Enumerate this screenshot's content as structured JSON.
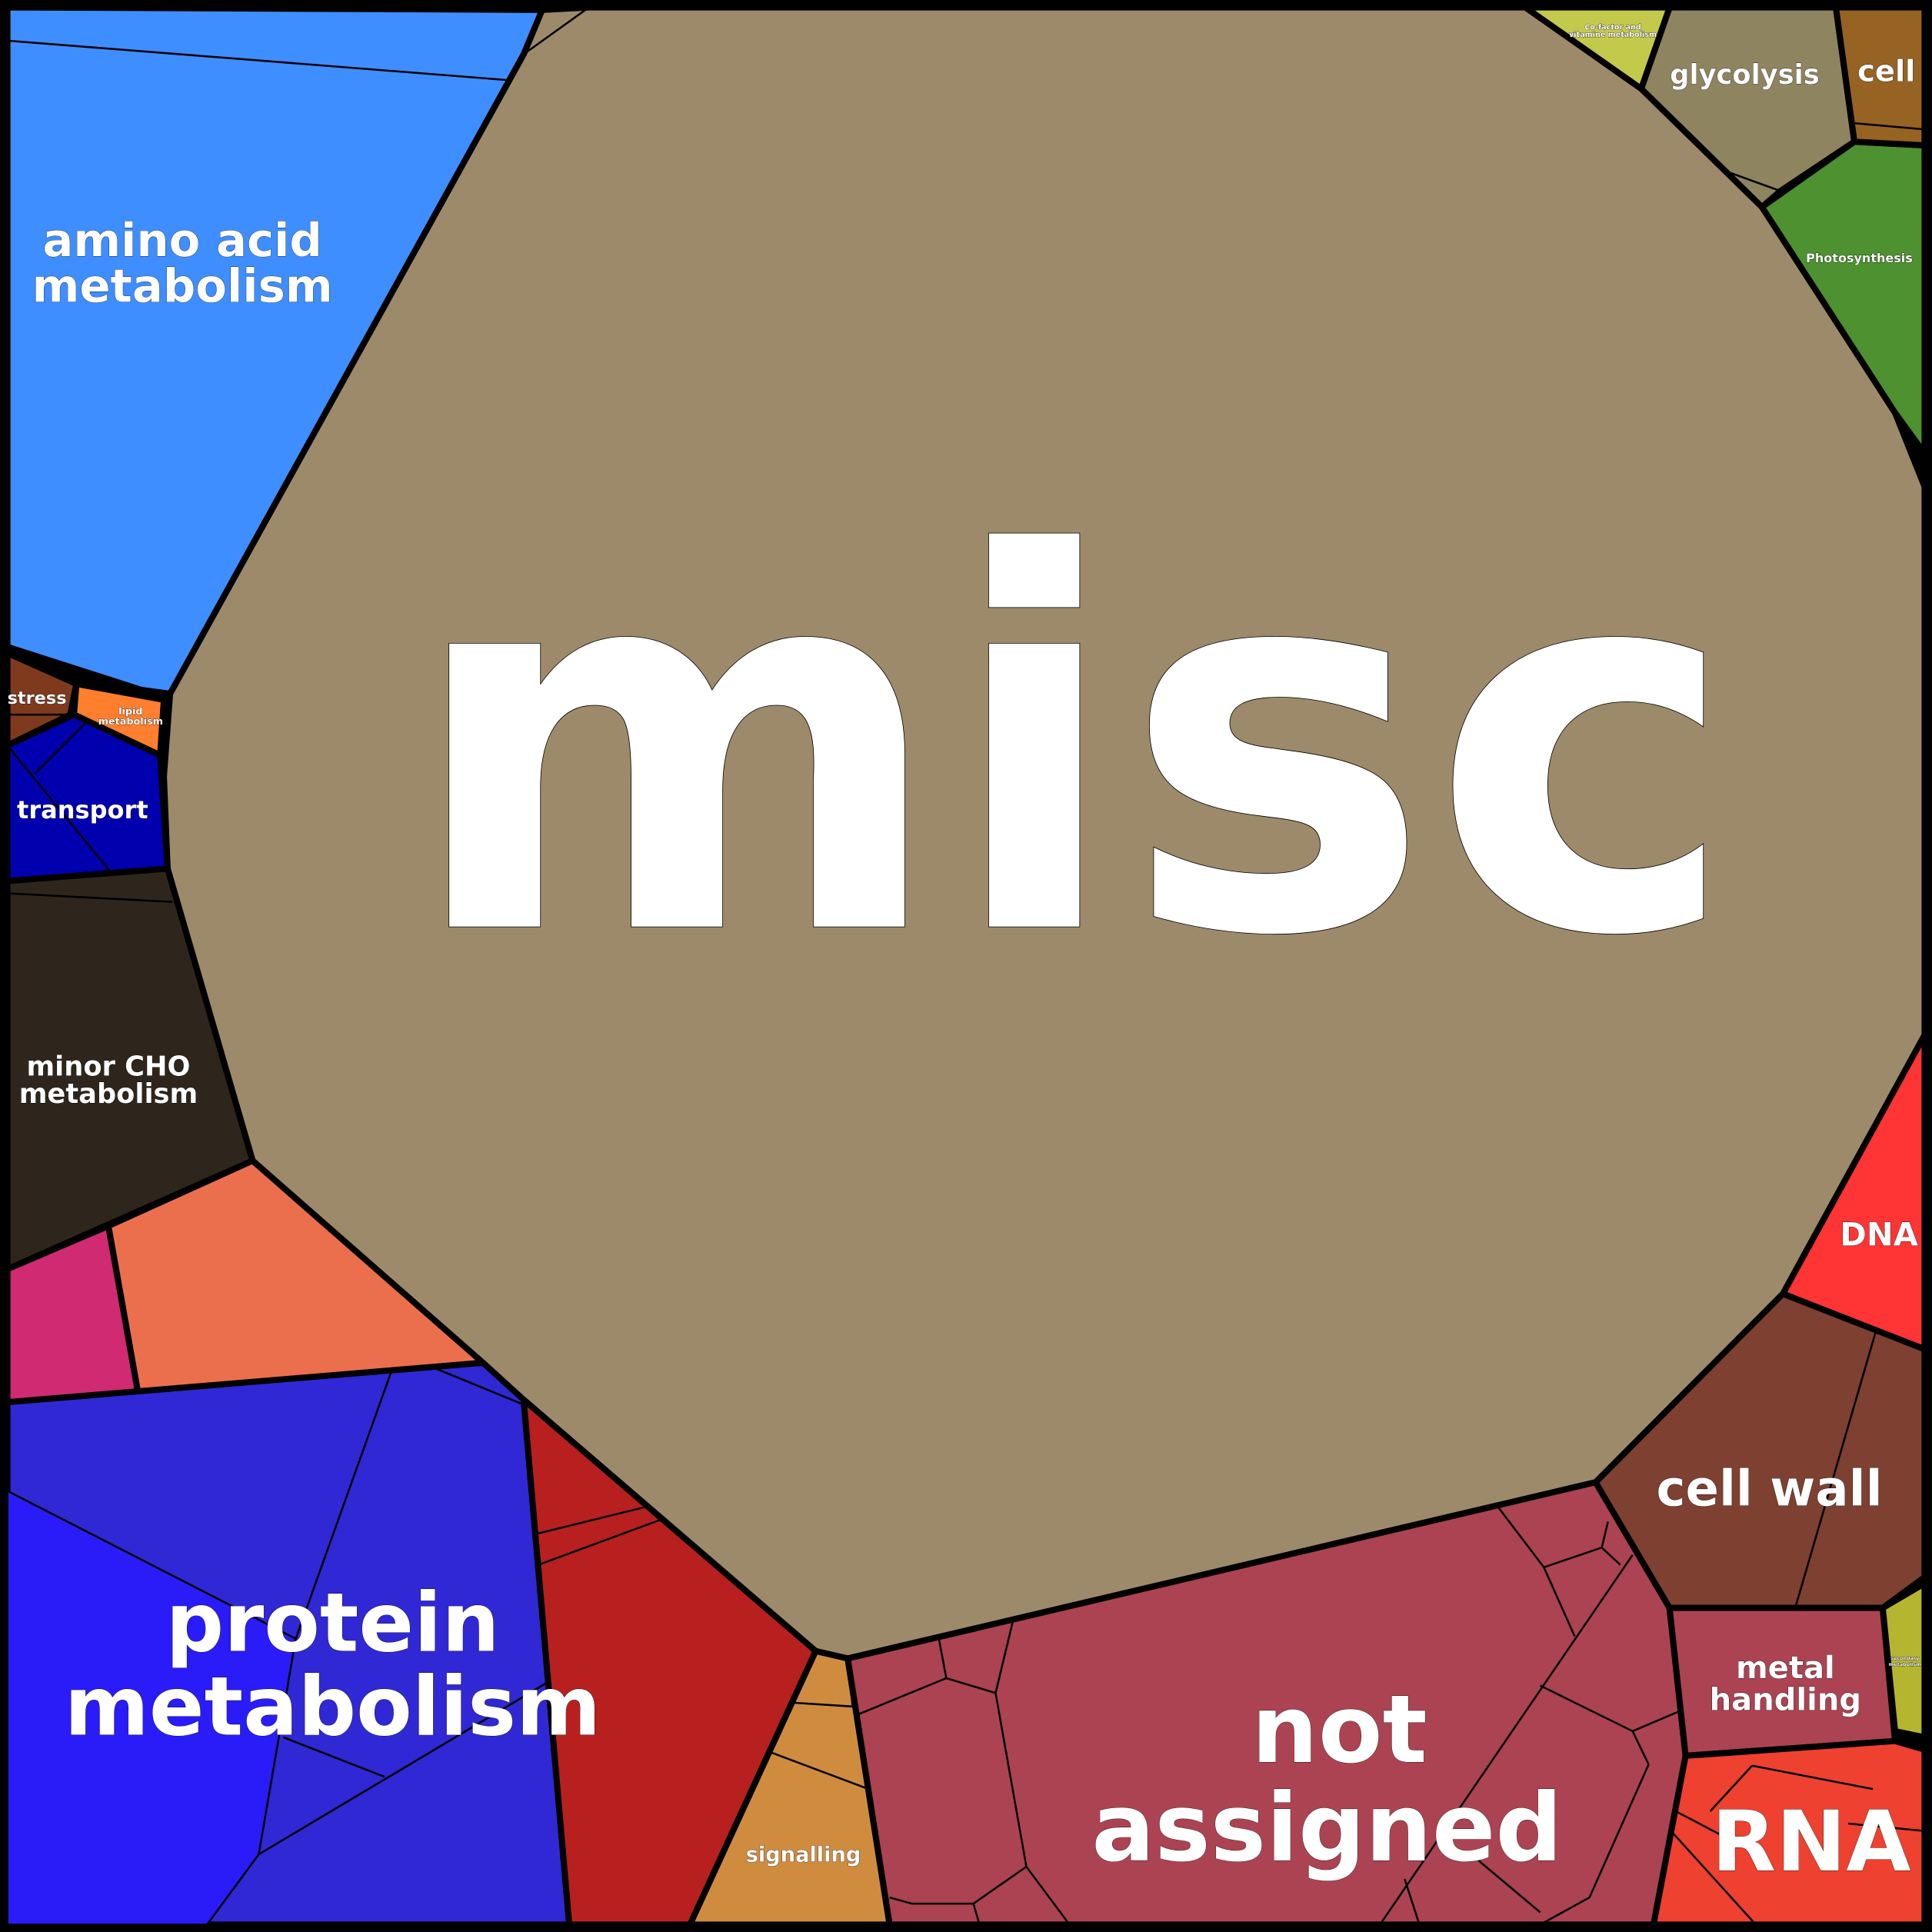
{
  "colors": {
    "misc": "#9C8A6B",
    "amino_acid_metabolism": "#3F8EFF",
    "stress": "#7F3A1E",
    "lipid_metabolism": "#FF7F2F",
    "transport": "#0000AF",
    "minor_cho_metabolism": "#2E261C",
    "pink_region": "#D02A72",
    "salmon_region": "#EC6F4D",
    "protein_metabolism": "#3028D4",
    "protein_metabolism_light": "#2A1CF8",
    "red_region": "#B82020",
    "signalling": "#D08C3E",
    "not_assigned": "#AC4352",
    "cell_wall": "#7E4030",
    "dna": "#FF3434",
    "metal_handling": "#AC4352",
    "secondary_metabolism": "#B5B52F",
    "rna": "#EE4130",
    "photosynthesis": "#4D9130",
    "glycolysis": "#8F8460",
    "cell": "#976322",
    "cofactor": "#C3C94A"
  },
  "labels": {
    "misc": "misc",
    "amino_1": "amino acid",
    "amino_2": "metabolism",
    "stress": "stress",
    "lipid_1": "lipid",
    "lipid_2": "metabolism",
    "transport": "transport",
    "cho_1": "minor CHO",
    "cho_2": "metabolism",
    "protein_1": "protein",
    "protein_2": "metabolism",
    "signalling": "signalling",
    "not_assigned_1": "not",
    "not_assigned_2": "assigned",
    "cell_wall": "cell wall",
    "dna": "DNA",
    "metal_1": "metal",
    "metal_2": "handling",
    "secondary_1": "secondary",
    "secondary_2": "metabolism",
    "rna": "RNA",
    "photosynthesis": "Photosynthesis",
    "glycolysis": "glycolysis",
    "cell": "cell",
    "cofactor_1": "Co-factor and",
    "cofactor_2": "vitamine metabolism"
  }
}
